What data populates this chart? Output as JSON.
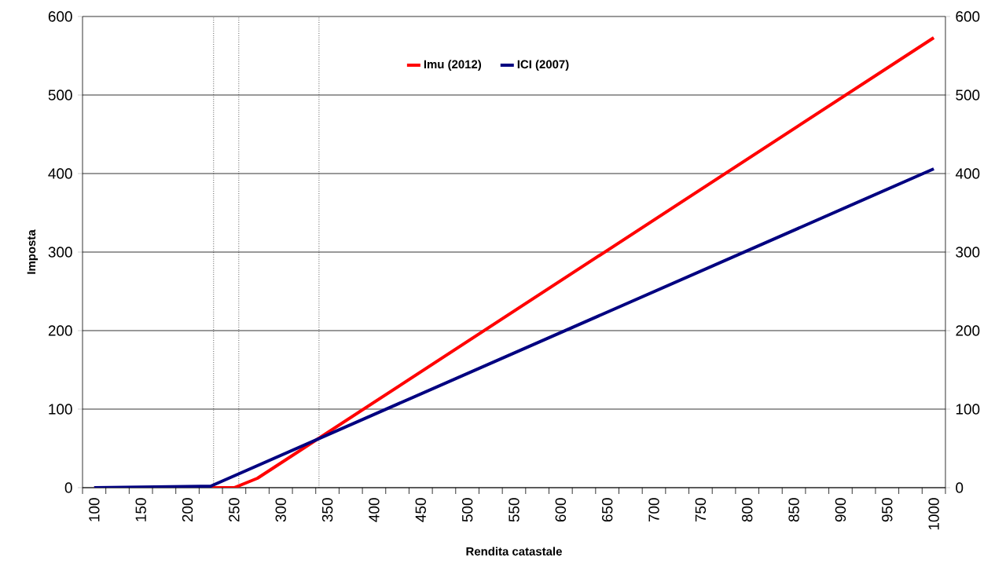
{
  "chart_data": {
    "type": "line",
    "xlabel": "Rendita catastale",
    "ylabel": "Imposta",
    "series": [
      {
        "name": "Imu (2012)",
        "color": "#ff0000",
        "x": [
          100,
          250,
          275,
          1000
        ],
        "values": [
          0,
          0,
          12,
          573
        ]
      },
      {
        "name": "ICI (2007)",
        "color": "#000080",
        "x": [
          100,
          225,
          1000
        ],
        "values": [
          0,
          2,
          406
        ]
      }
    ],
    "xlim": [
      87.5,
      1012.5
    ],
    "xticks": [
      100,
      150,
      200,
      250,
      300,
      350,
      400,
      450,
      500,
      550,
      600,
      650,
      700,
      750,
      800,
      850,
      900,
      950,
      1000,
      {
        "value": 87.5,
        "label": null
      },
      {
        "value": 112.5,
        "label": null
      },
      {
        "value": 137.5,
        "label": null
      },
      {
        "value": 162.5,
        "label": null
      },
      {
        "value": 187.5,
        "label": null
      },
      {
        "value": 212.5,
        "label": null
      },
      {
        "value": 237.5,
        "label": null
      },
      {
        "value": 262.5,
        "label": null
      },
      {
        "value": 287.5,
        "label": null
      },
      {
        "value": 312.5,
        "label": null
      },
      {
        "value": 337.5,
        "label": null
      },
      {
        "value": 362.5,
        "label": null
      },
      {
        "value": 387.5,
        "label": null
      },
      {
        "value": 412.5,
        "label": null
      },
      {
        "value": 437.5,
        "label": null
      },
      {
        "value": 462.5,
        "label": null
      },
      {
        "value": 487.5,
        "label": null
      },
      {
        "value": 512.5,
        "label": null
      },
      {
        "value": 537.5,
        "label": null
      },
      {
        "value": 562.5,
        "label": null
      },
      {
        "value": 587.5,
        "label": null
      },
      {
        "value": 612.5,
        "label": null
      },
      {
        "value": 637.5,
        "label": null
      },
      {
        "value": 662.5,
        "label": null
      },
      {
        "value": 687.5,
        "label": null
      },
      {
        "value": 712.5,
        "label": null
      },
      {
        "value": 737.5,
        "label": null
      },
      {
        "value": 762.5,
        "label": null
      },
      {
        "value": 787.5,
        "label": null
      },
      {
        "value": 812.5,
        "label": null
      },
      {
        "value": 837.5,
        "label": null
      },
      {
        "value": 862.5,
        "label": null
      },
      {
        "value": 887.5,
        "label": null
      },
      {
        "value": 912.5,
        "label": null
      },
      {
        "value": 937.5,
        "label": null
      },
      {
        "value": 962.5,
        "label": null
      },
      {
        "value": 987.5,
        "label": null
      },
      {
        "value": 1012.5,
        "label": null
      }
    ],
    "ylim": [
      0,
      600
    ],
    "yticks": [
      0,
      100,
      200,
      300,
      400,
      500,
      600
    ],
    "y2lim": [
      0,
      600
    ],
    "y2ticks": [
      0,
      100,
      200,
      300,
      400,
      500,
      600
    ],
    "ref_lines": [
      {
        "axis": "x",
        "value": 228,
        "color": "#000000",
        "line_style": "dotted"
      },
      {
        "axis": "x",
        "value": 255,
        "color": "#000000",
        "line_style": "dotted"
      },
      {
        "axis": "x",
        "value": 341,
        "color": "#000000",
        "line_style": "dotted"
      }
    ],
    "grid": "y",
    "legend": "top",
    "marker": "none",
    "line_style": "solid"
  }
}
